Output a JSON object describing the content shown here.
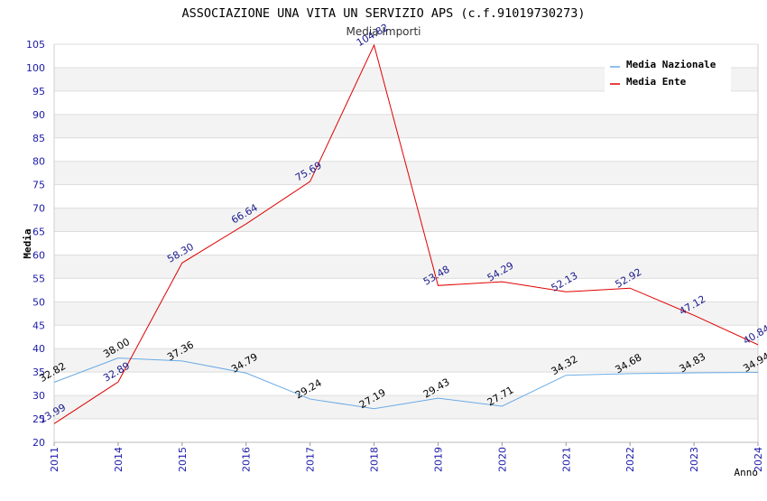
{
  "chart_data": {
    "type": "line",
    "title": "ASSOCIAZIONE UNA VITA UN SERVIZIO APS (c.f.91019730273)",
    "subtitle": "Media Importi",
    "xlabel": "Anno",
    "ylabel": "Media",
    "categories": [
      "2011",
      "2014",
      "2015",
      "2016",
      "2017",
      "2018",
      "2019",
      "2020",
      "2021",
      "2022",
      "2023",
      "2024"
    ],
    "ylim": [
      20,
      105
    ],
    "yticks": [
      20,
      25,
      30,
      35,
      40,
      45,
      50,
      55,
      60,
      65,
      70,
      75,
      80,
      85,
      90,
      95,
      100,
      105
    ],
    "grid": "horizontal bands",
    "legend_position": "top-right",
    "series": [
      {
        "name": "Media Nazionale",
        "color": "#6aaae6",
        "label_color": "#000000",
        "values": [
          32.82,
          38.0,
          37.36,
          34.79,
          29.24,
          27.19,
          29.43,
          27.71,
          34.32,
          34.68,
          34.83,
          34.94
        ],
        "labels": [
          "32.82",
          "38.00",
          "37.36",
          "34.79",
          "29.24",
          "27.19",
          "29.43",
          "27.71",
          "34.32",
          "34.68",
          "34.83",
          "34.94"
        ]
      },
      {
        "name": "Media Ente",
        "color": "#e00000",
        "label_color": "#1a1a8c",
        "values": [
          23.99,
          32.89,
          58.3,
          66.64,
          75.69,
          104.82,
          53.48,
          54.29,
          52.13,
          52.92,
          47.12,
          40.84
        ],
        "labels": [
          "23.99",
          "32.89",
          "58.30",
          "66.64",
          "75.69",
          "104.82",
          "53.48",
          "54.29",
          "52.13",
          "52.92",
          "47.12",
          "40.84"
        ]
      }
    ],
    "axis_color": "#1a1aa8",
    "band_color": "#f3f3f3",
    "gridline_color": "#dddddd"
  }
}
